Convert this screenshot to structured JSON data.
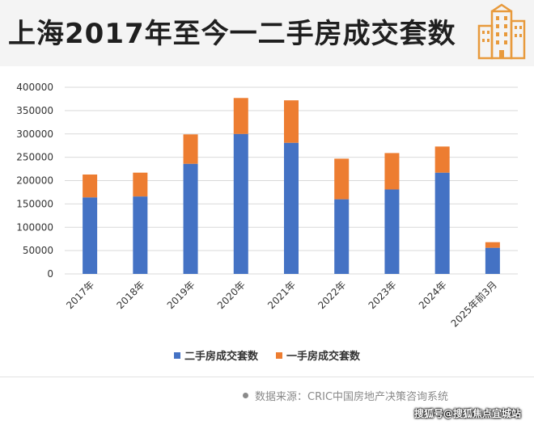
{
  "title": "上海2017年至今一二手房成交套数",
  "icon": "building-icon",
  "colors": {
    "second_hand": "#4472C4",
    "first_hand": "#ED7D31",
    "grid": "#d9d9d9",
    "icon_orange": "#E89A3C"
  },
  "chart_data": {
    "type": "bar",
    "stacked": true,
    "categories": [
      "2017年",
      "2018年",
      "2019年",
      "2020年",
      "2021年",
      "2022年",
      "2023年",
      "2024年",
      "2025年前3月"
    ],
    "series": [
      {
        "name": "二手房成交套数",
        "values": [
          164000,
          166000,
          236000,
          300000,
          281000,
          160000,
          181000,
          217000,
          56000
        ]
      },
      {
        "name": "一手房成交套数",
        "values": [
          49000,
          51000,
          63000,
          77000,
          91000,
          87000,
          78000,
          56000,
          12000
        ]
      }
    ],
    "ylim": [
      0,
      400000
    ],
    "yticks": [
      0,
      50000,
      100000,
      150000,
      200000,
      250000,
      300000,
      350000,
      400000
    ],
    "grid": true,
    "legend_position": "bottom"
  },
  "source": "数据来源：CRIC中国房地产决策咨询系统",
  "watermark": "搜狐号@搜狐焦点宜城站"
}
